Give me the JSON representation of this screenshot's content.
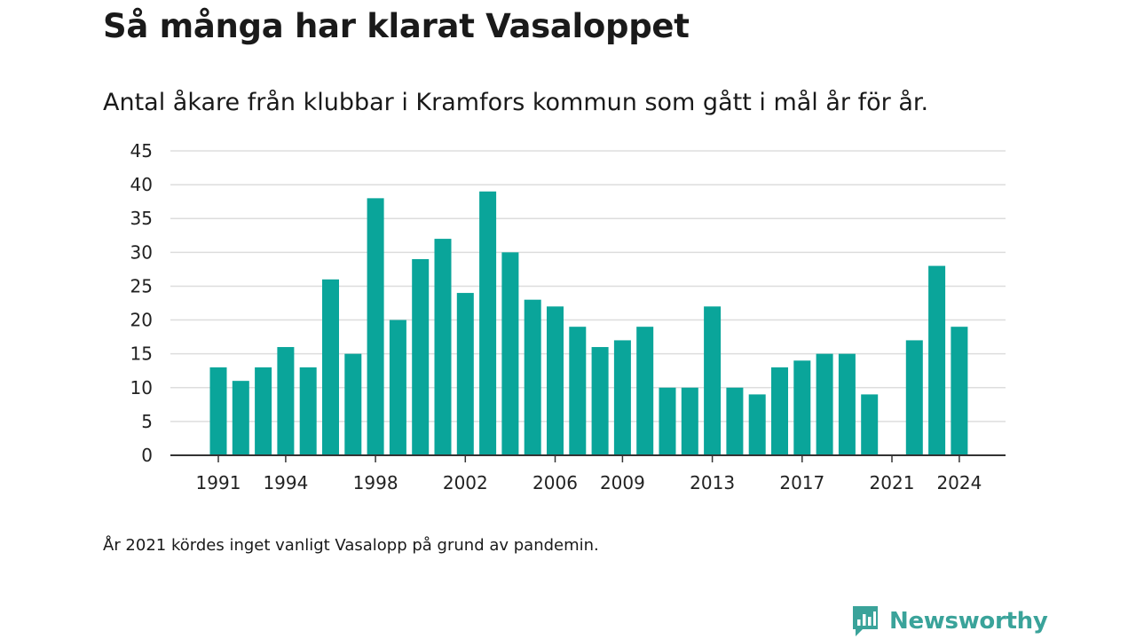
{
  "title": "Så många har klarat Vasaloppet",
  "subtitle": "Antal åkare från klubbar i Kramfors kommun som gått i mål år för år.",
  "footnote": "År 2021 kördes inget vanligt Vasalopp på grund av pandemin.",
  "brand": "Newsworthy",
  "colors": {
    "bar": "#0aa59a",
    "grid": "#dddddd",
    "axis": "#333333",
    "brand": "#3aa39a"
  },
  "chart_data": {
    "type": "bar",
    "title": "Så många har klarat Vasaloppet",
    "subtitle": "Antal åkare från klubbar i Kramfors kommun som gått i mål år för år.",
    "xlabel": "",
    "ylabel": "",
    "ylim": [
      0,
      45
    ],
    "yticks": [
      "0",
      "5",
      "10",
      "15",
      "20",
      "25",
      "30",
      "35",
      "40",
      "45"
    ],
    "xticks": [
      "1991",
      "1994",
      "1998",
      "2002",
      "2006",
      "2009",
      "2013",
      "2017",
      "2021",
      "2024"
    ],
    "grid": true,
    "categories": [
      1991,
      1992,
      1993,
      1994,
      1995,
      1996,
      1997,
      1998,
      1999,
      2000,
      2001,
      2002,
      2003,
      2004,
      2005,
      2006,
      2007,
      2008,
      2009,
      2010,
      2011,
      2012,
      2013,
      2014,
      2015,
      2016,
      2017,
      2018,
      2019,
      2020,
      2021,
      2022,
      2023,
      2024
    ],
    "values": [
      13,
      11,
      13,
      16,
      13,
      26,
      15,
      38,
      20,
      29,
      32,
      24,
      39,
      30,
      23,
      22,
      19,
      16,
      17,
      19,
      10,
      10,
      22,
      10,
      9,
      13,
      14,
      15,
      15,
      9,
      0,
      17,
      28,
      19
    ]
  }
}
